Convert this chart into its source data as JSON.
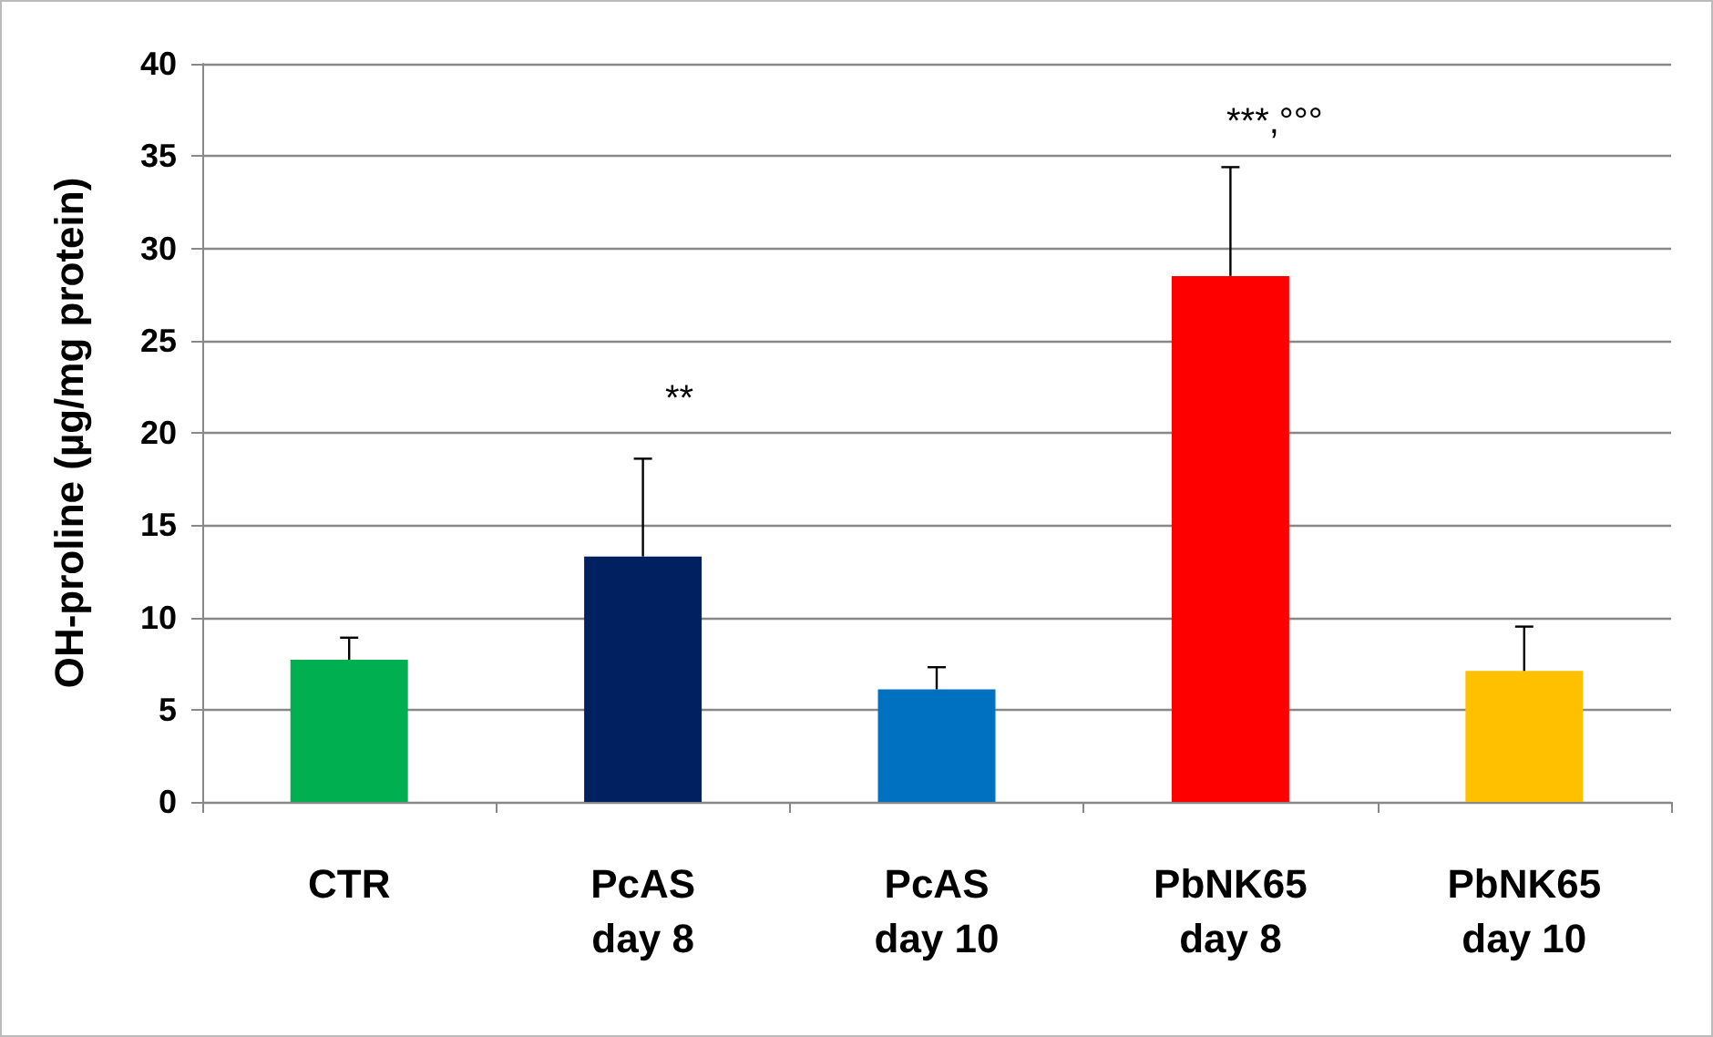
{
  "chart_data": {
    "type": "bar",
    "ylabel": "OH-proline (µg/mg protein)",
    "categories": [
      "CTR",
      "PcAS\nday 8",
      "PcAS\nday 10",
      "PbNK65\nday 8",
      "PbNK65\nday 10"
    ],
    "values": [
      7.7,
      13.3,
      6.1,
      28.5,
      7.1
    ],
    "colors": [
      "#00b050",
      "#002060",
      "#0070c0",
      "#ff0000",
      "#ffc000"
    ],
    "errors": [
      [
        7.7,
        8.9
      ],
      [
        13.3,
        18.6
      ],
      [
        6.1,
        7.3
      ],
      [
        28.5,
        34.4
      ],
      [
        7.1,
        9.5
      ]
    ],
    "ylim": [
      0,
      40
    ],
    "yticks": [
      0,
      5,
      10,
      15,
      20,
      25,
      30,
      35,
      40
    ],
    "grid": "y",
    "annotations": [
      "**",
      "***,°°°"
    ]
  }
}
